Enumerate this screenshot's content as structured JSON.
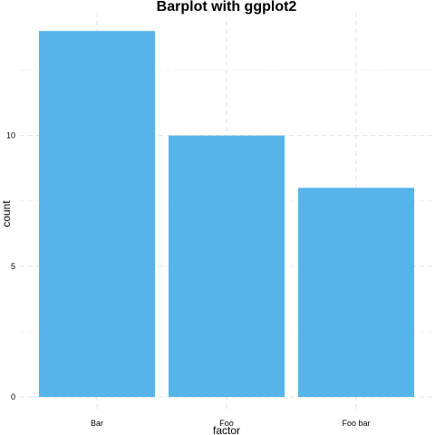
{
  "chart_data": {
    "type": "bar",
    "title": "Barplot with ggplot2",
    "xlabel": "factor",
    "ylabel": "count",
    "categories": [
      "Bar",
      "Foo",
      "Foo bar"
    ],
    "values": [
      14,
      10,
      8
    ],
    "ylim": [
      0,
      14.7
    ],
    "yticks": [
      0,
      5,
      10
    ],
    "yticks_labels": [
      "0",
      "5",
      "10"
    ],
    "bar_color": "#56B4E9",
    "grid": true
  }
}
